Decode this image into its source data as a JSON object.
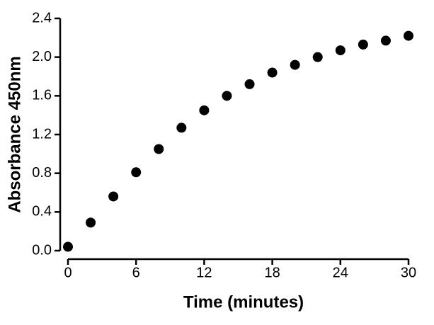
{
  "chart_data": {
    "type": "scatter",
    "xlabel": "Time (minutes)",
    "ylabel": "Absorbance 450nm",
    "series": [
      {
        "color": "#000000",
        "x": [
          0,
          2,
          4,
          6,
          8,
          10,
          12,
          14,
          16,
          18,
          20,
          22,
          24,
          26,
          28,
          30
        ],
        "values": [
          0.04,
          0.29,
          0.56,
          0.81,
          1.05,
          1.27,
          1.45,
          1.6,
          1.72,
          1.84,
          1.92,
          2.0,
          2.07,
          2.13,
          2.17,
          2.22
        ]
      }
    ],
    "xlim": [
      0,
      30
    ],
    "xticks": [
      0,
      6,
      12,
      18,
      24,
      30
    ],
    "ylim": [
      0,
      2.4
    ],
    "yticks": [
      {
        "value": 0,
        "label": "0.0"
      },
      0.4,
      0.8,
      1.2,
      1.6,
      {
        "value": 2,
        "label": "2.0"
      },
      2.4
    ]
  }
}
